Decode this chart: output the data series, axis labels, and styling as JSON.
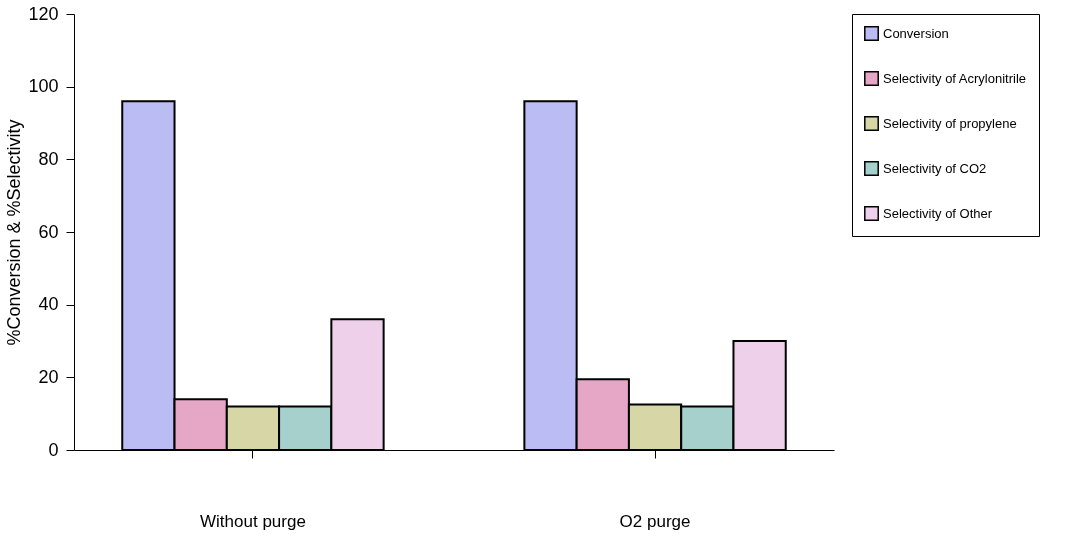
{
  "chart_data": {
    "type": "bar",
    "ylabel": "%Conversion & %Selectivity",
    "categories": [
      "Without purge",
      "O2 purge"
    ],
    "series": [
      {
        "name": "Conversion",
        "color": "#bcbcf4",
        "values": [
          96,
          96
        ]
      },
      {
        "name": "Selectivity of Acrylonitrile",
        "color": "#e6a6c6",
        "values": [
          14,
          19.5
        ]
      },
      {
        "name": "Selectivity of propylene",
        "color": "#d6d6a6",
        "values": [
          12,
          12.5
        ]
      },
      {
        "name": "Selectivity of CO2",
        "color": "#a6d0cc",
        "values": [
          12,
          12
        ]
      },
      {
        "name": "Selectivity of Other",
        "color": "#eed0ea",
        "values": [
          36,
          30
        ]
      }
    ],
    "ylim": [
      0,
      120
    ],
    "yticks": [
      0,
      20,
      40,
      60,
      80,
      100,
      120
    ],
    "grid": false,
    "legend": "right"
  }
}
